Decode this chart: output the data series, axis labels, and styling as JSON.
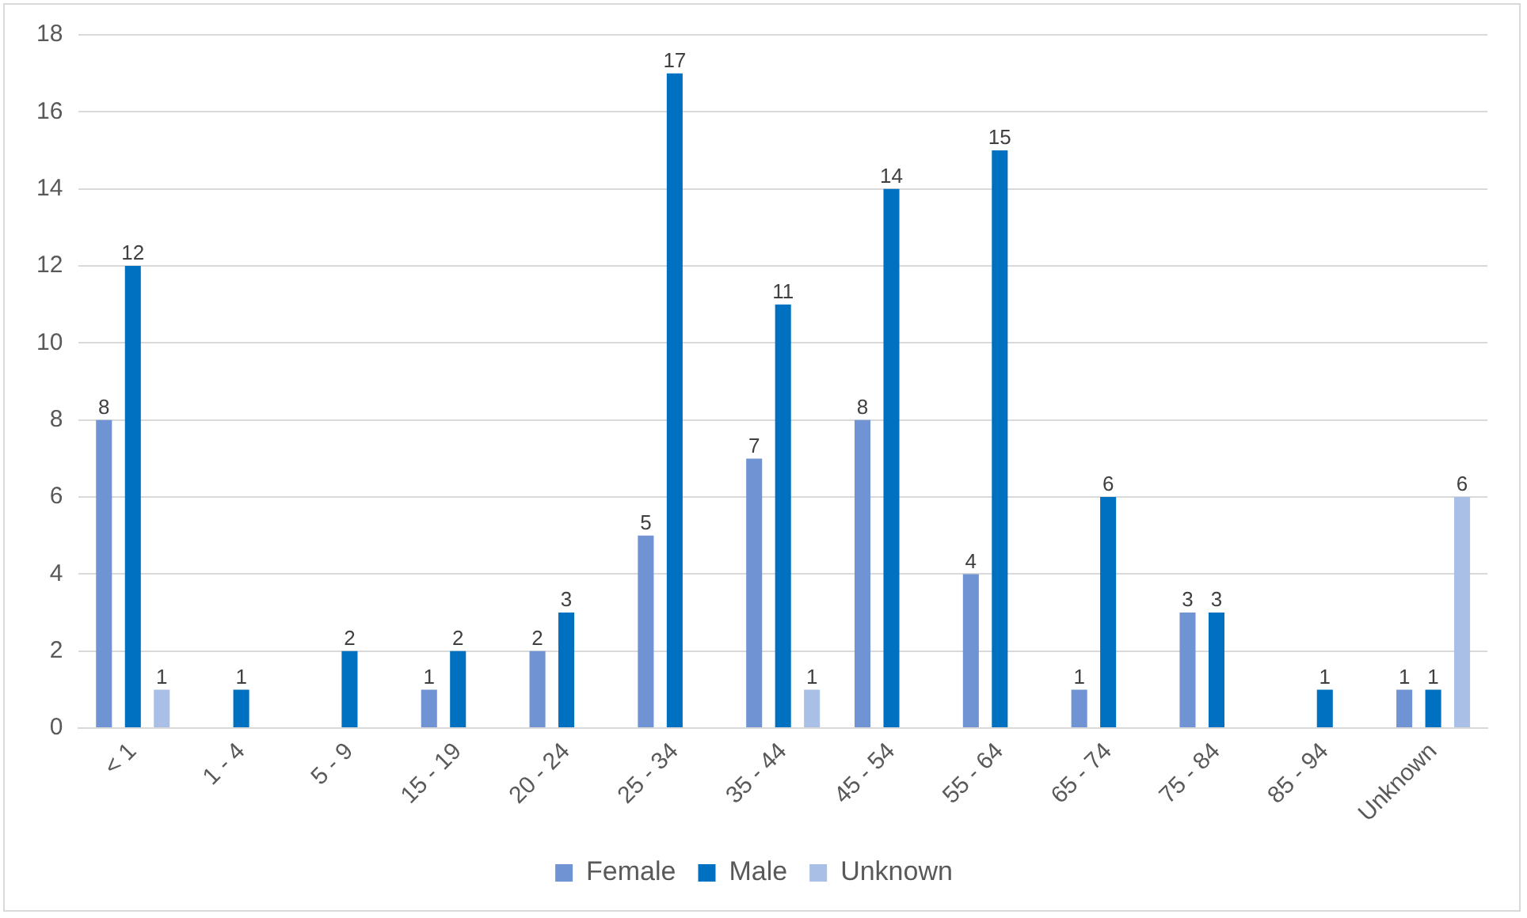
{
  "chart_data": {
    "type": "bar",
    "categories": [
      "< 1",
      "1 - 4",
      "5 - 9",
      "15 - 19",
      "20 - 24",
      "25 - 34",
      "35 - 44",
      "45 - 54",
      "55 - 64",
      "65 - 74",
      "75 - 84",
      "85 - 94",
      "Unknown"
    ],
    "series": [
      {
        "name": "Female",
        "color": "#6f93d3",
        "values": [
          8,
          null,
          null,
          1,
          2,
          5,
          7,
          8,
          4,
          1,
          3,
          null,
          1
        ]
      },
      {
        "name": "Male",
        "color": "#0070c0",
        "values": [
          12,
          1,
          2,
          2,
          3,
          17,
          11,
          14,
          15,
          6,
          3,
          1,
          1
        ]
      },
      {
        "name": "Unknown",
        "color": "#a9bfe6",
        "values": [
          1,
          null,
          null,
          null,
          null,
          null,
          1,
          null,
          null,
          null,
          null,
          null,
          6
        ]
      }
    ],
    "ylim": [
      0,
      18
    ],
    "yticks": [
      0,
      2,
      4,
      6,
      8,
      10,
      12,
      14,
      16,
      18
    ],
    "grid": "y",
    "legend": "bottom",
    "data_labels": true
  }
}
